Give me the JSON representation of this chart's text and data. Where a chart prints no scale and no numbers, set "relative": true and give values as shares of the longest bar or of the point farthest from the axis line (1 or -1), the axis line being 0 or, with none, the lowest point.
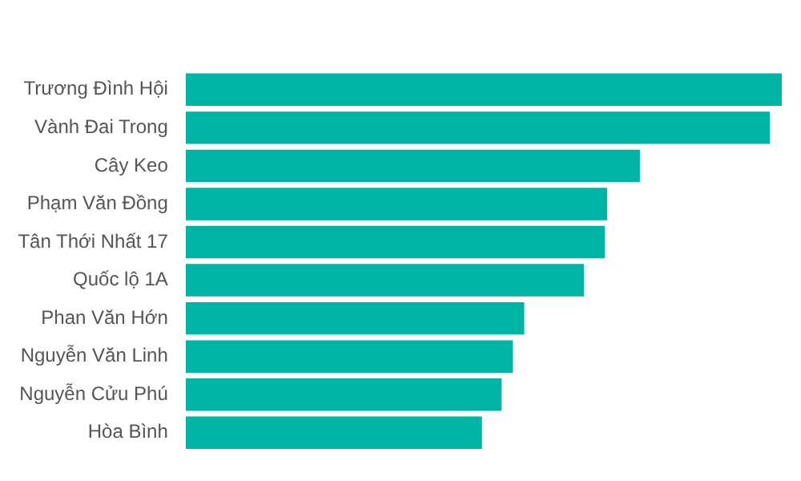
{
  "chart_data": {
    "type": "bar",
    "orientation": "horizontal",
    "relative": true,
    "color": "#00b4a5",
    "categories": [
      "Trương Đình Hội",
      "Vành Đai Trong",
      "Cây Keo",
      "Phạm Văn Đồng",
      "Tân Thới Nhất 17",
      "Quốc lộ 1A",
      "Phan Văn Hớn",
      "Nguyễn Văn Linh",
      "Nguyễn Cửu Phú",
      "Hòa Bình"
    ],
    "values": [
      1,
      0.98,
      0.762,
      0.707,
      0.703,
      0.668,
      0.568,
      0.549,
      0.53,
      0.497
    ]
  }
}
